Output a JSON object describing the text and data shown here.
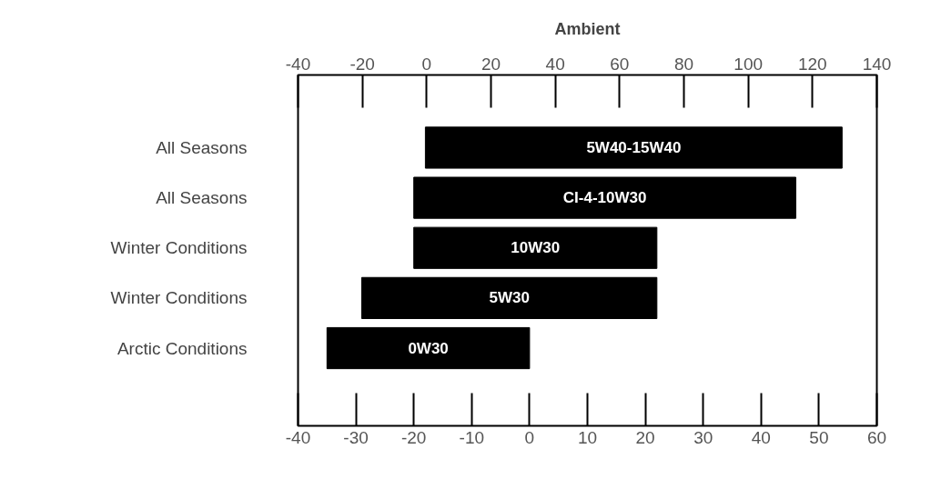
{
  "chart_data": {
    "type": "bar",
    "orientation": "horizontal",
    "title": "Ambient",
    "categories": [
      "All Seasons",
      "All Seasons",
      "Winter Conditions",
      "Winter Conditions",
      "Arctic Conditions"
    ],
    "base": [
      -18,
      -20,
      -20,
      -29,
      -35
    ],
    "values": [
      72,
      66,
      42,
      51,
      35
    ],
    "annotations": [
      "5W40-15W40",
      "CI-4-10W30",
      "10W30",
      "5W30",
      "0W30"
    ],
    "color": "#000000",
    "xlim": [
      -40,
      60
    ],
    "xticks": [
      -40,
      -30,
      -20,
      -10,
      0,
      10,
      20,
      30,
      40,
      50,
      60
    ],
    "x2lim": [
      -40,
      140
    ],
    "x2ticks": [
      -40,
      -20,
      0,
      20,
      40,
      60,
      80,
      100,
      120,
      140
    ],
    "grid": false
  }
}
